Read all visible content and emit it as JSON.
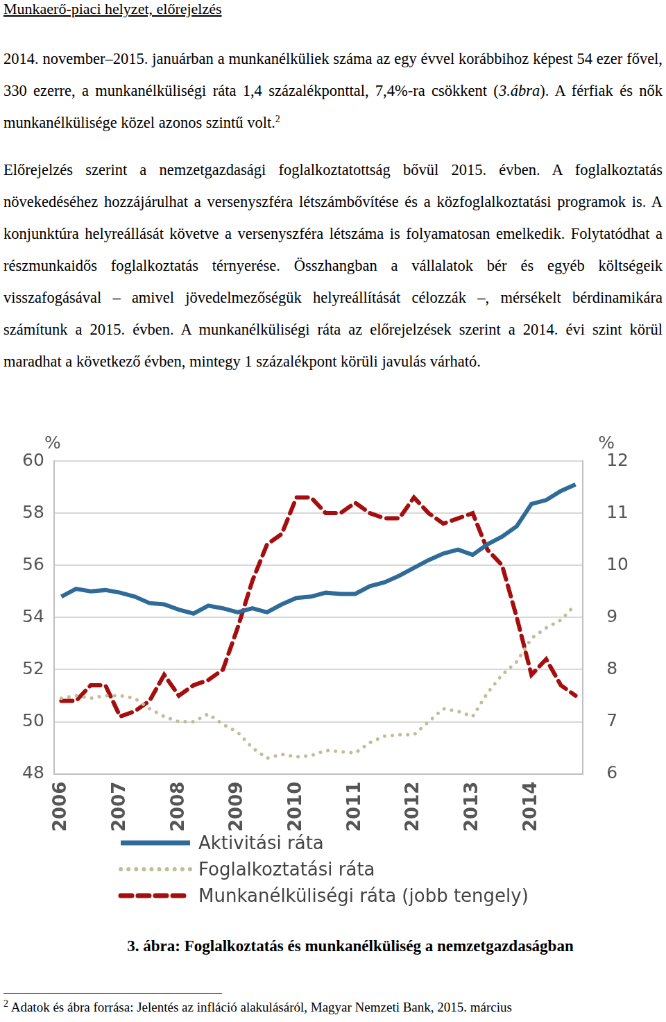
{
  "heading": "Munkaerő-piaci helyzet, előrejelzés",
  "paragraphs": [
    [
      {
        "text": "2014. november–2015. januárban a munkanélküliek száma az egy évvel korábbihoz képest 54 ezer fővel, 330 ezerre, a munkanélküliségi ráta 1,4 százalékponttal, 7,4%-ra csökkent ("
      },
      {
        "text": "3.ábra",
        "format": "italic"
      },
      {
        "text": "). A férfiak és nők munkanélkülisége közel azonos szintű volt."
      },
      {
        "text": "2",
        "format": "sup"
      }
    ],
    [
      {
        "text": "Előrejelzés szerint a nemzetgazdasági foglalkoztatottság bővül 2015. évben. A foglalkoztatás növekedéséhez hozzájárulhat a versenyszféra létszámbővítése és a közfoglalkoztatási programok is. A konjunktúra helyreállását követve a versenyszféra létszáma is folyamatosan emelkedik. Folytatódhat a részmunkaidős foglalkoztatás térnyerése. Összhangban a vállalatok bér és egyéb költségeik visszafogásával – amivel jövedelmezőségük helyreállítását célozzák –, mérsékelt bérdinamikára számítunk a 2015. évben. A munkanélküliségi ráta az előrejelzések szerint a 2014. évi szint körül maradhat a következő évben, mintegy 1 százalékpont körüli javulás várható."
      }
    ]
  ],
  "chart_data": {
    "type": "line",
    "y_label": "%",
    "y2_label": "%",
    "categories": [
      "2006",
      null,
      null,
      null,
      "2007",
      null,
      null,
      null,
      "2008",
      null,
      null,
      null,
      "2009",
      null,
      null,
      null,
      "2010",
      null,
      null,
      null,
      "2011",
      null,
      null,
      null,
      "2012",
      null,
      null,
      null,
      "2013",
      null,
      null,
      null,
      "2014",
      null,
      null,
      null
    ],
    "series": [
      {
        "name": "Aktivitási ráta",
        "color": "#2e6b99",
        "line_style": "solid",
        "axis": "y",
        "values": [
          54.8,
          55.1,
          55.0,
          55.05,
          54.95,
          54.8,
          54.55,
          54.5,
          54.3,
          54.15,
          54.45,
          54.35,
          54.2,
          54.35,
          54.2,
          54.5,
          54.75,
          54.8,
          54.95,
          54.9,
          54.9,
          55.2,
          55.35,
          55.6,
          55.9,
          56.2,
          56.45,
          56.6,
          56.4,
          56.8,
          57.1,
          57.5,
          58.35,
          58.5,
          58.85,
          59.1
        ]
      },
      {
        "name": "Foglalkoztatási ráta",
        "color": "#c4bc96",
        "line_style": "dotted",
        "axis": "y",
        "values": [
          50.9,
          51.0,
          50.9,
          51.0,
          51.0,
          50.9,
          50.5,
          50.2,
          50.0,
          50.0,
          50.3,
          49.9,
          49.6,
          49.0,
          48.6,
          48.75,
          48.65,
          48.7,
          48.9,
          48.85,
          48.8,
          49.2,
          49.45,
          49.5,
          49.5,
          50.0,
          50.5,
          50.4,
          50.2,
          51.1,
          51.8,
          52.3,
          53.2,
          53.6,
          53.9,
          54.5
        ]
      },
      {
        "name": "Munkanélküliségi ráta (jobb tengely)",
        "color": "#a50e0e",
        "line_style": "dashed",
        "axis": "y2",
        "values": [
          7.4,
          7.4,
          7.7,
          7.7,
          7.1,
          7.2,
          7.4,
          7.9,
          7.5,
          7.7,
          7.8,
          8.0,
          8.8,
          9.7,
          10.4,
          10.6,
          11.3,
          11.3,
          11.0,
          11.0,
          11.2,
          11.0,
          10.9,
          10.9,
          11.3,
          11.0,
          10.8,
          10.9,
          11.0,
          10.3,
          10.0,
          9.0,
          7.9,
          8.2,
          7.7,
          7.5
        ]
      }
    ],
    "ylim": [
      48,
      60
    ],
    "yticks": [
      48,
      50,
      52,
      54,
      56,
      58,
      60
    ],
    "y2lim": [
      6,
      12
    ],
    "y2ticks": [
      6,
      7,
      8,
      9,
      10,
      11,
      12
    ],
    "grid": true,
    "legend": "bottom"
  },
  "caption": "3. ábra: Foglalkoztatás és munkanélküliség a nemzetgazdaságban",
  "footnote": [
    {
      "text": "2",
      "format": "sup"
    },
    {
      "text": " Adatok és ábra forrása: Jelentés az infláció alakulásáról, Magyar Nemzeti Bank, 2015. március"
    }
  ]
}
